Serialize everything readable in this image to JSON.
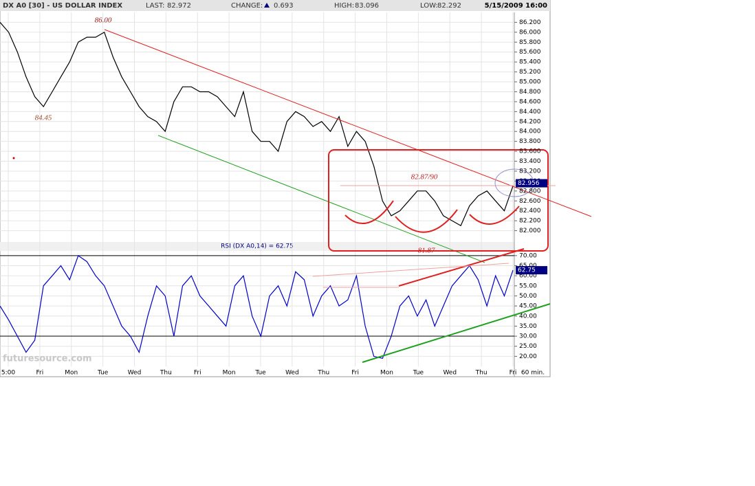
{
  "header": {
    "title": "DX A0 [30] - US DOLLAR INDEX",
    "last_label": "LAST:",
    "last": 82.972,
    "change_label": "CHANGE:",
    "change": 0.693,
    "high_label": "HIGH:",
    "high": 83.096,
    "low_label": "LOW:",
    "low": 82.292,
    "datetime": "5/15/2009 16:00"
  },
  "chart_data": [
    {
      "type": "line",
      "color": "#000000",
      "current_value": 82.956,
      "annotations": [
        "86.00",
        "84.45",
        "82.87/90",
        "81.87"
      ],
      "values": [
        86.2,
        86.0,
        85.6,
        85.1,
        84.7,
        84.5,
        84.8,
        85.1,
        85.4,
        85.8,
        85.9,
        85.9,
        86.0,
        85.5,
        85.1,
        84.8,
        84.5,
        84.3,
        84.2,
        84.0,
        84.6,
        84.9,
        84.9,
        84.8,
        84.8,
        84.7,
        84.5,
        84.3,
        84.8,
        84.0,
        83.8,
        83.8,
        83.6,
        84.2,
        84.4,
        84.3,
        84.1,
        84.2,
        84.0,
        84.3,
        83.7,
        84.0,
        83.8,
        83.3,
        82.6,
        82.3,
        82.4,
        82.6,
        82.8,
        82.8,
        82.6,
        82.3,
        82.2,
        82.1,
        82.5,
        82.7,
        82.8,
        82.6,
        82.4,
        82.9
      ],
      "ylim": [
        81.8,
        86.4
      ],
      "yticks": [
        {
          "value": 82.0,
          "label": "82.000"
        },
        {
          "value": 82.2,
          "label": "82.200"
        },
        {
          "value": 82.4,
          "label": "82.400"
        },
        {
          "value": 82.6,
          "label": "82.600"
        },
        {
          "value": 82.8,
          "label": "82.800"
        },
        {
          "value": 83.0,
          "label": "83.000"
        },
        {
          "value": 83.2,
          "label": "83.200"
        },
        {
          "value": 83.4,
          "label": "83.400"
        },
        {
          "value": 83.6,
          "label": "83.600"
        },
        {
          "value": 83.8,
          "label": "83.800"
        },
        {
          "value": 84.0,
          "label": "84.000"
        },
        {
          "value": 84.2,
          "label": "84.200"
        },
        {
          "value": 84.4,
          "label": "84.400"
        },
        {
          "value": 84.6,
          "label": "84.600"
        },
        {
          "value": 84.8,
          "label": "84.800"
        },
        {
          "value": 85.0,
          "label": "85.000"
        },
        {
          "value": 85.2,
          "label": "85.200"
        },
        {
          "value": 85.4,
          "label": "85.400"
        },
        {
          "value": 85.6,
          "label": "85.600"
        },
        {
          "value": 85.8,
          "label": "85.800"
        },
        {
          "value": 86.0,
          "label": "86.000"
        },
        {
          "value": 86.2,
          "label": "86.200"
        }
      ],
      "grid": true
    },
    {
      "type": "line",
      "title": "RSI (DX A0,14) = 62.75",
      "color": "#0000cc",
      "current_value": 62.75,
      "values": [
        45,
        38,
        30,
        22,
        28,
        55,
        60,
        65,
        58,
        70,
        67,
        60,
        55,
        45,
        35,
        30,
        22,
        40,
        55,
        50,
        30,
        55,
        60,
        50,
        45,
        40,
        35,
        55,
        60,
        40,
        30,
        50,
        55,
        45,
        62,
        58,
        40,
        50,
        55,
        45,
        48,
        60,
        35,
        20,
        19,
        30,
        45,
        50,
        40,
        48,
        35,
        45,
        55,
        60,
        65,
        58,
        45,
        60,
        50,
        62.75
      ],
      "ylim": [
        15,
        72
      ],
      "yticks": [
        {
          "value": 20,
          "label": "20.00"
        },
        {
          "value": 25,
          "label": "25.00"
        },
        {
          "value": 30,
          "label": "30.00"
        },
        {
          "value": 35,
          "label": "35.00"
        },
        {
          "value": 40,
          "label": "40.00"
        },
        {
          "value": 45,
          "label": "45.00"
        },
        {
          "value": 50,
          "label": "50.00"
        },
        {
          "value": 55,
          "label": "55.00"
        },
        {
          "value": 60,
          "label": "60.00"
        },
        {
          "value": 65,
          "label": "65.00"
        },
        {
          "value": 70,
          "label": "70.00"
        }
      ],
      "reference_lines": [
        70,
        30
      ],
      "x_labels": [
        "5:00",
        "Fri",
        "Mon",
        "Tue",
        "Wed",
        "Thu",
        "Fri",
        "Mon",
        "Tue",
        "Wed",
        "Thu",
        "Fri",
        "Mon",
        "Tue",
        "Wed",
        "Thu",
        "Fri"
      ],
      "interval": "60 min.",
      "watermark": "futuresource.com",
      "grid": true
    }
  ]
}
